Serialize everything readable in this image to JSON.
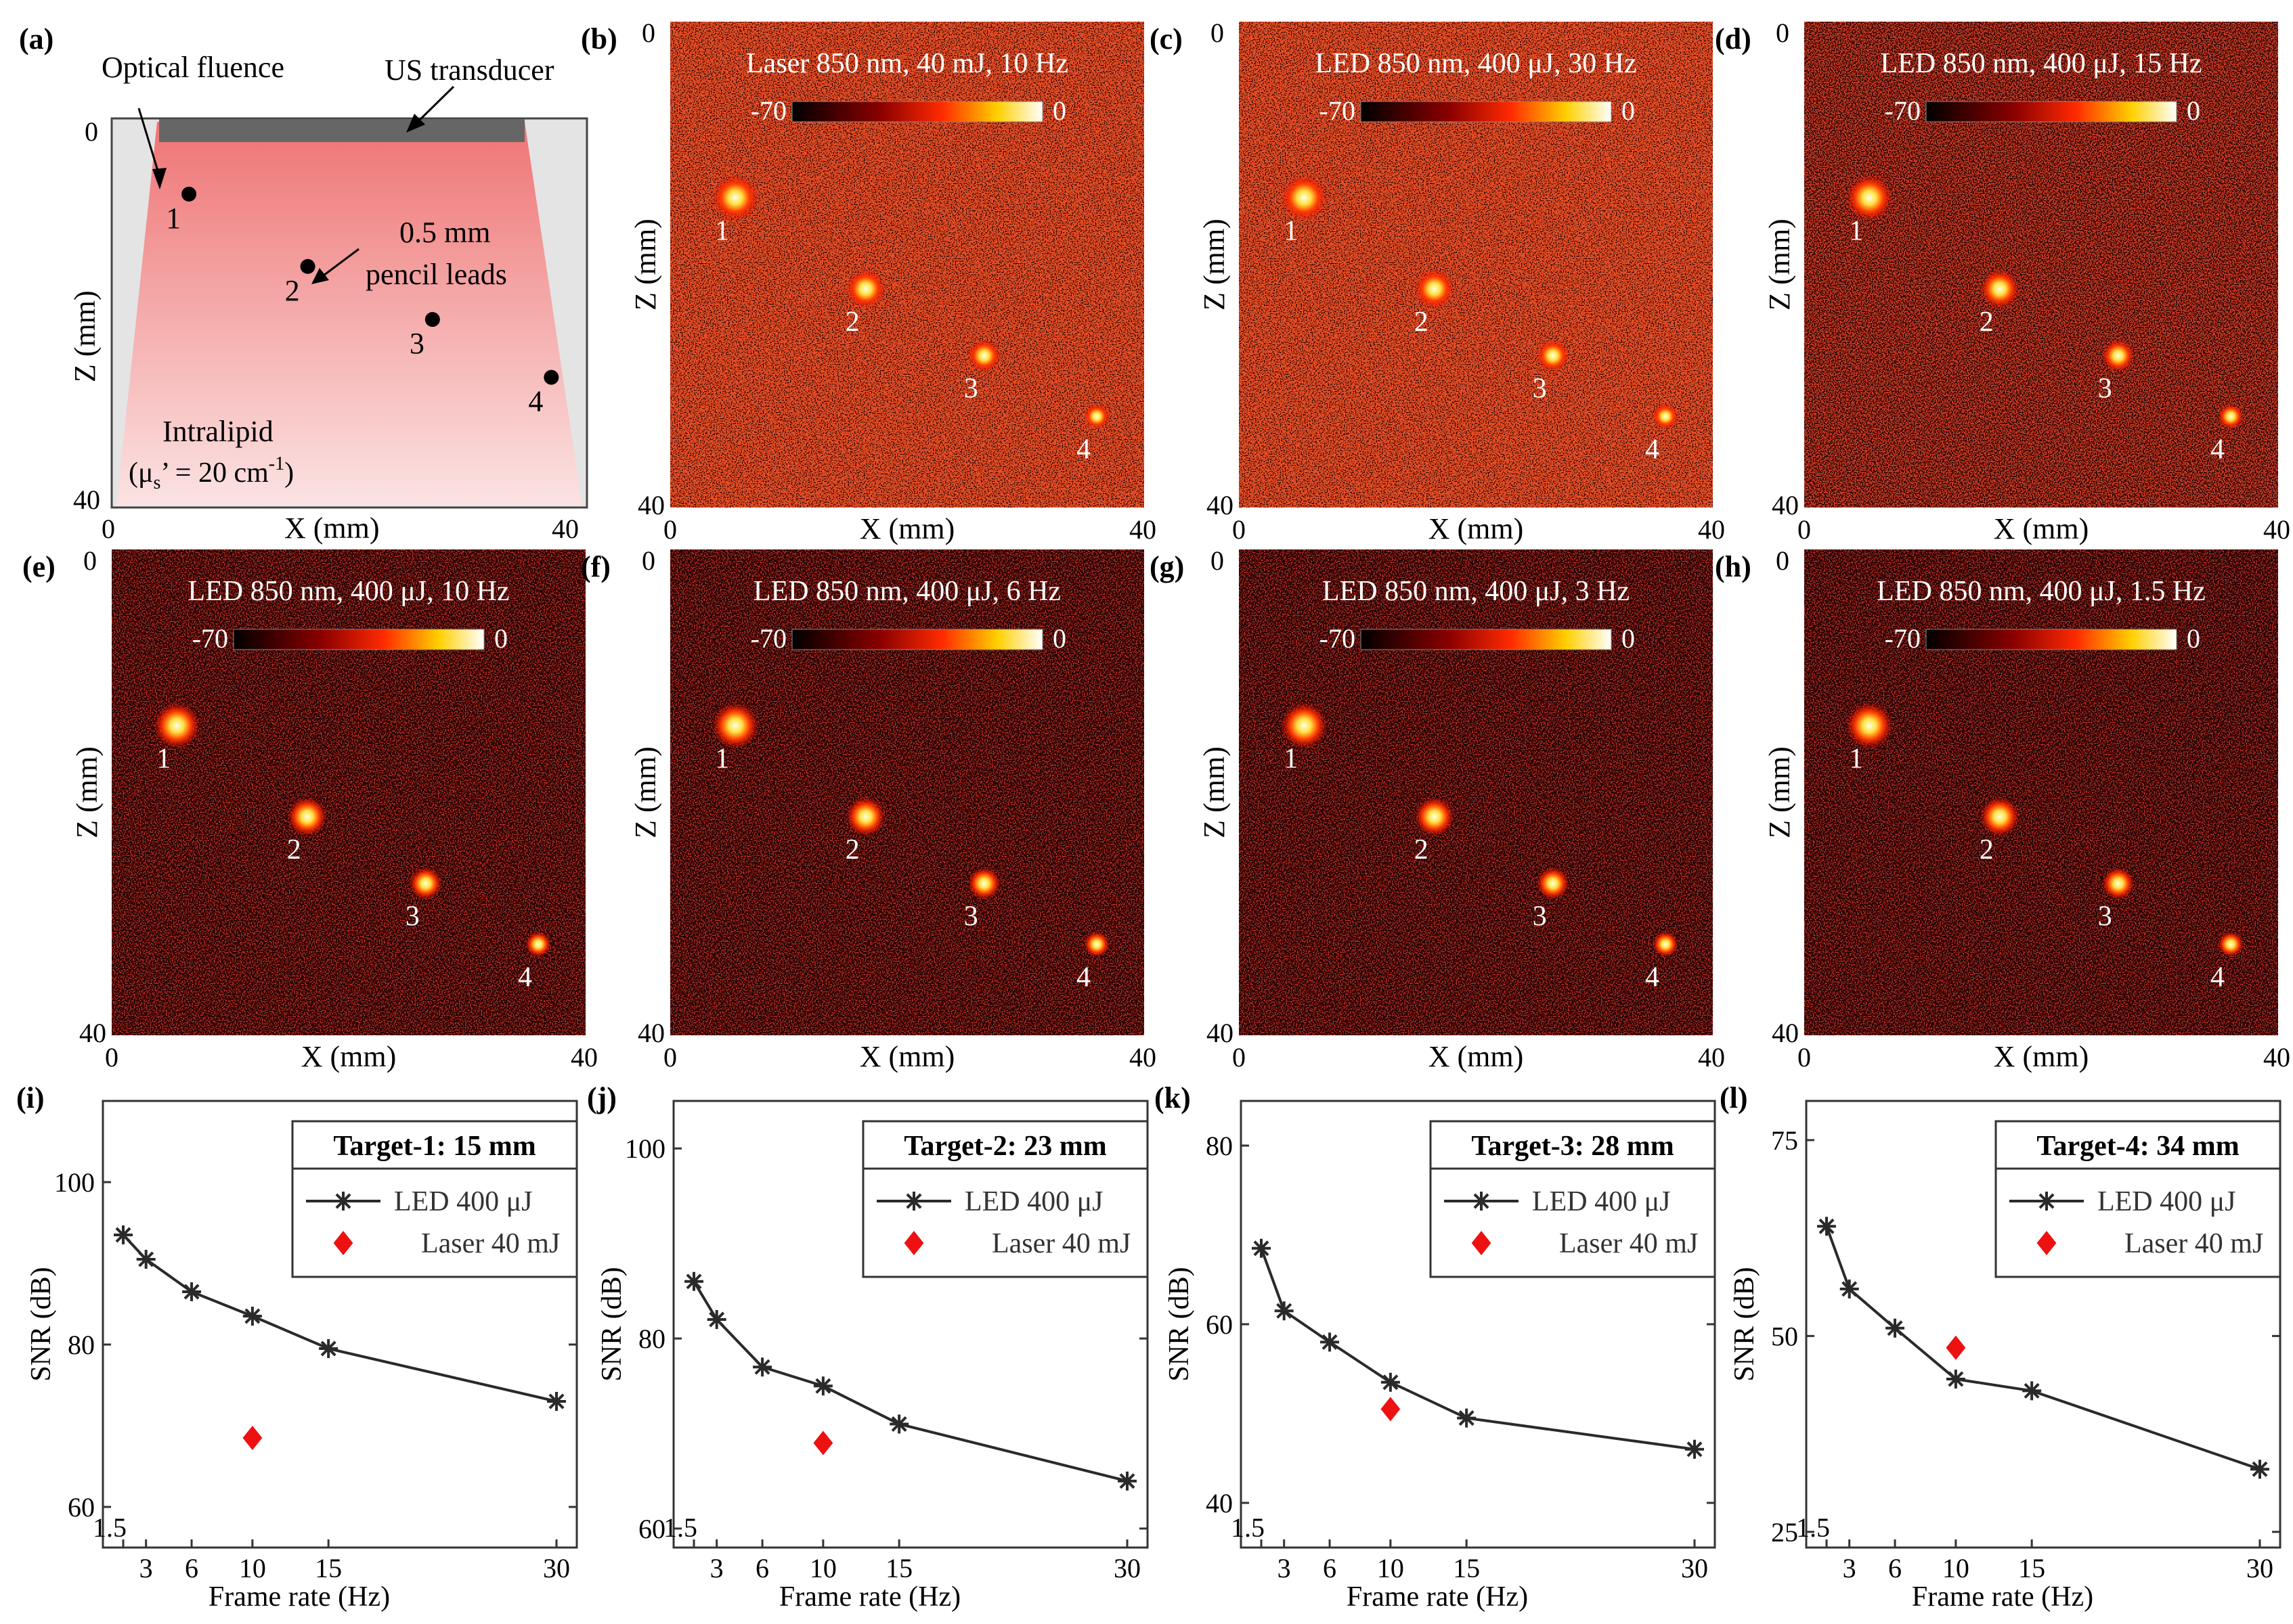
{
  "figure": {
    "panels": {
      "a": {
        "letter": "(a)",
        "label_fluence": "Optical fluence",
        "label_transducer": "US transducer",
        "label_pencil_1": "0.5 mm",
        "label_pencil_2": "pencil leads",
        "label_medium": "Intralipid",
        "label_mus_pre": "(μ",
        "label_mus_sub": "s",
        "label_mus_mid": "’ = 20 cm",
        "label_mus_sup": "-1",
        "label_mus_post": ")",
        "xlabel": "X (mm)",
        "ylabel": "Z (mm)",
        "tick_0": "0",
        "tick_40": "40",
        "targets": [
          {
            "label": "1",
            "x_mm": 6.5,
            "z_mm": 7.5
          },
          {
            "label": "2",
            "x_mm": 16.5,
            "z_mm": 15.0
          },
          {
            "label": "3",
            "x_mm": 27.0,
            "z_mm": 20.5
          },
          {
            "label": "4",
            "x_mm": 37.0,
            "z_mm": 26.5
          }
        ]
      },
      "images": [
        {
          "letter": "(b)",
          "title": "Laser 850 nm, 40 mJ, 10 Hz",
          "cbar_min": "-70",
          "cbar_max": "0",
          "xlabel": "X (mm)",
          "ylabel": "Z (mm)",
          "tick_0": "0",
          "tick_40": "40",
          "noise": "high"
        },
        {
          "letter": "(c)",
          "title": "LED 850 nm, 400 μJ, 30 Hz",
          "cbar_min": "-70",
          "cbar_max": "0",
          "xlabel": "X (mm)",
          "ylabel": "Z (mm)",
          "tick_0": "0",
          "tick_40": "40",
          "noise": "high"
        },
        {
          "letter": "(d)",
          "title": "LED 850 nm, 400 μJ, 15 Hz",
          "cbar_min": "-70",
          "cbar_max": "0",
          "xlabel": "X (mm)",
          "ylabel": "Z (mm)",
          "tick_0": "0",
          "tick_40": "40",
          "noise": "medium"
        },
        {
          "letter": "(e)",
          "title": "LED 850 nm, 400 μJ, 10 Hz",
          "cbar_min": "-70",
          "cbar_max": "0",
          "xlabel": "X (mm)",
          "ylabel": "Z (mm)",
          "tick_0": "0",
          "tick_40": "40",
          "noise": "low"
        },
        {
          "letter": "(f)",
          "title": "LED 850 nm, 400 μJ, 6 Hz",
          "cbar_min": "-70",
          "cbar_max": "0",
          "xlabel": "X (mm)",
          "ylabel": "Z (mm)",
          "tick_0": "0",
          "tick_40": "40",
          "noise": "low"
        },
        {
          "letter": "(g)",
          "title": "LED 850 nm, 400 μJ, 3 Hz",
          "cbar_min": "-70",
          "cbar_max": "0",
          "xlabel": "X (mm)",
          "ylabel": "Z (mm)",
          "tick_0": "0",
          "tick_40": "40",
          "noise": "low"
        },
        {
          "letter": "(h)",
          "title": "LED 850 nm, 400 μJ, 1.5 Hz",
          "cbar_min": "-70",
          "cbar_max": "0",
          "xlabel": "X (mm)",
          "ylabel": "Z (mm)",
          "tick_0": "0",
          "tick_40": "40",
          "noise": "low"
        }
      ],
      "image_targets": [
        {
          "label": "1",
          "x_mm": 5.5,
          "z_mm": 14.5
        },
        {
          "label": "2",
          "x_mm": 16.5,
          "z_mm": 22.0
        },
        {
          "label": "3",
          "x_mm": 26.5,
          "z_mm": 27.5
        },
        {
          "label": "4",
          "x_mm": 36.0,
          "z_mm": 32.5
        }
      ]
    }
  },
  "chart_data": [
    {
      "type": "line",
      "panel": "(i)",
      "legend_title": "Target-1: 15 mm",
      "xlabel": "Frame rate (Hz)",
      "ylabel": "SNR (dB)",
      "x_ticks": [
        "1.5",
        "3",
        "6",
        "10",
        "15",
        "30"
      ],
      "y_ticks": [
        60,
        80,
        100
      ],
      "ylim": [
        55,
        110
      ],
      "series": [
        {
          "name": "LED 400 μJ",
          "x": [
            1.5,
            3,
            6,
            10,
            15,
            30
          ],
          "y": [
            93.5,
            90.5,
            86.5,
            83.5,
            79.5,
            73
          ]
        },
        {
          "name": "Laser 40 mJ",
          "x": [
            10
          ],
          "y": [
            68.5
          ]
        }
      ]
    },
    {
      "type": "line",
      "panel": "(j)",
      "legend_title": "Target-2: 23 mm",
      "xlabel": "Frame rate (Hz)",
      "ylabel": "SNR (dB)",
      "x_ticks": [
        "1.5",
        "3",
        "6",
        "10",
        "15",
        "30"
      ],
      "y_ticks": [
        60,
        80,
        100
      ],
      "ylim": [
        58,
        105
      ],
      "series": [
        {
          "name": "LED 400 μJ",
          "x": [
            1.5,
            3,
            6,
            10,
            15,
            30
          ],
          "y": [
            86,
            82,
            77,
            75,
            71,
            65
          ]
        },
        {
          "name": "Laser 40 mJ",
          "x": [
            10
          ],
          "y": [
            69
          ]
        }
      ]
    },
    {
      "type": "line",
      "panel": "(k)",
      "legend_title": "Target-3: 28 mm",
      "xlabel": "Frame rate (Hz)",
      "ylabel": "SNR (dB)",
      "x_ticks": [
        "1.5",
        "3",
        "6",
        "10",
        "15",
        "30"
      ],
      "y_ticks": [
        40,
        60,
        80
      ],
      "ylim": [
        35,
        85
      ],
      "series": [
        {
          "name": "LED 400 μJ",
          "x": [
            1.5,
            3,
            6,
            10,
            15,
            30
          ],
          "y": [
            68.5,
            61.5,
            58,
            53.5,
            49.5,
            46
          ]
        },
        {
          "name": "Laser 40 mJ",
          "x": [
            10
          ],
          "y": [
            50.5
          ]
        }
      ]
    },
    {
      "type": "line",
      "panel": "(l)",
      "legend_title": "Target-4: 34 mm",
      "xlabel": "Frame rate (Hz)",
      "ylabel": "SNR (dB)",
      "x_ticks": [
        "1.5",
        "3",
        "6",
        "10",
        "15",
        "30"
      ],
      "y_ticks": [
        25,
        50,
        75
      ],
      "ylim": [
        23,
        80
      ],
      "series": [
        {
          "name": "LED 400 μJ",
          "x": [
            1.5,
            3,
            6,
            10,
            15,
            30
          ],
          "y": [
            64,
            56,
            51,
            44.5,
            43,
            33
          ]
        },
        {
          "name": "Laser 40 mJ",
          "x": [
            10
          ],
          "y": [
            48.5
          ]
        }
      ]
    }
  ],
  "colors": {
    "line": "#2a2a2a",
    "laser_marker": "#ee1111",
    "image_bg": "#1a0000",
    "phantom_top": "#f07878",
    "phantom_bottom": "#fbe4e4",
    "transducer": "#666666"
  }
}
